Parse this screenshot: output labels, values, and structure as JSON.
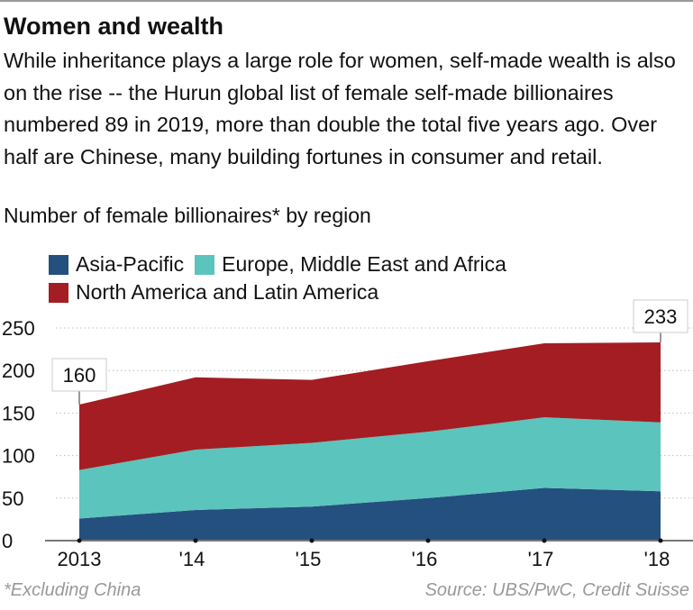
{
  "title": "Women and wealth",
  "subtitle": "While inheritance plays a large role for women, self-made wealth is also on the rise -- the Hurun global list of female self-made billionaires numbered 89 in 2019, more than double the total five years ago. Over half are Chinese, many building fortunes in consumer and retail.",
  "footnote": "*Excluding China",
  "source": "Source: UBS/PwC, Credit Suisse",
  "chart_data": {
    "type": "area",
    "stacked": true,
    "title": "Number of female billionaires* by region",
    "categories": [
      "2013",
      "'14",
      "'15",
      "'16",
      "'17",
      "'18"
    ],
    "series": [
      {
        "name": "Asia-Pacific",
        "color": "#24507f",
        "values": [
          26,
          36,
          40,
          50,
          62,
          58
        ]
      },
      {
        "name": "Europe, Middle East and Africa",
        "color": "#5bc4bc",
        "values": [
          57,
          71,
          75,
          78,
          83,
          81
        ]
      },
      {
        "name": "North America and Latin America",
        "color": "#a41d23",
        "values": [
          77,
          85,
          74,
          83,
          87,
          94
        ]
      }
    ],
    "annotations": [
      {
        "category": "2013",
        "label": "160"
      },
      {
        "category": "'18",
        "label": "233"
      }
    ],
    "yticks": [
      "0",
      "50",
      "100",
      "150",
      "200",
      "250"
    ],
    "ylim": [
      0,
      250
    ],
    "grid": true,
    "legend": "top-left"
  }
}
